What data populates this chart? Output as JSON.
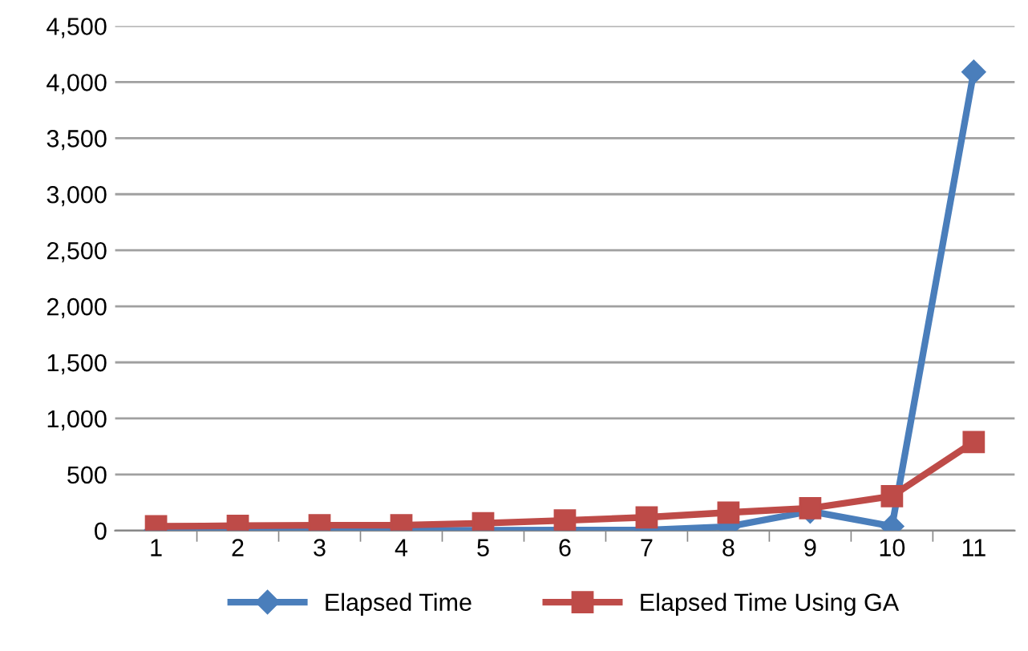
{
  "chart_data": {
    "type": "line",
    "categories": [
      "1",
      "2",
      "3",
      "4",
      "5",
      "6",
      "7",
      "8",
      "9",
      "10",
      "11"
    ],
    "series": [
      {
        "name": "Elapsed Time",
        "color": "#4a7ebb",
        "marker": "diamond",
        "values": [
          2,
          2,
          2,
          3,
          3,
          4,
          5,
          35,
          172,
          38,
          4090
        ]
      },
      {
        "name": "Elapsed Time Using GA",
        "color": "#be4b48",
        "marker": "square",
        "values": [
          38,
          43,
          48,
          48,
          65,
          91,
          118,
          161,
          199,
          307,
          790
        ]
      }
    ],
    "ylim": [
      0,
      4500
    ],
    "yticks": [
      {
        "value": 0,
        "label": "0"
      },
      {
        "value": 500,
        "label": "500"
      },
      {
        "value": 1000,
        "label": "1,000"
      },
      {
        "value": 1500,
        "label": "1,500"
      },
      {
        "value": 2000,
        "label": "2,000"
      },
      {
        "value": 2500,
        "label": "2,500"
      },
      {
        "value": 3000,
        "label": "3,000"
      },
      {
        "value": 3500,
        "label": "3,500"
      },
      {
        "value": 4000,
        "label": "4,000"
      },
      {
        "value": 4500,
        "label": "4,500"
      }
    ],
    "grid": "y",
    "legend": "bottom",
    "line_style": "solid"
  }
}
